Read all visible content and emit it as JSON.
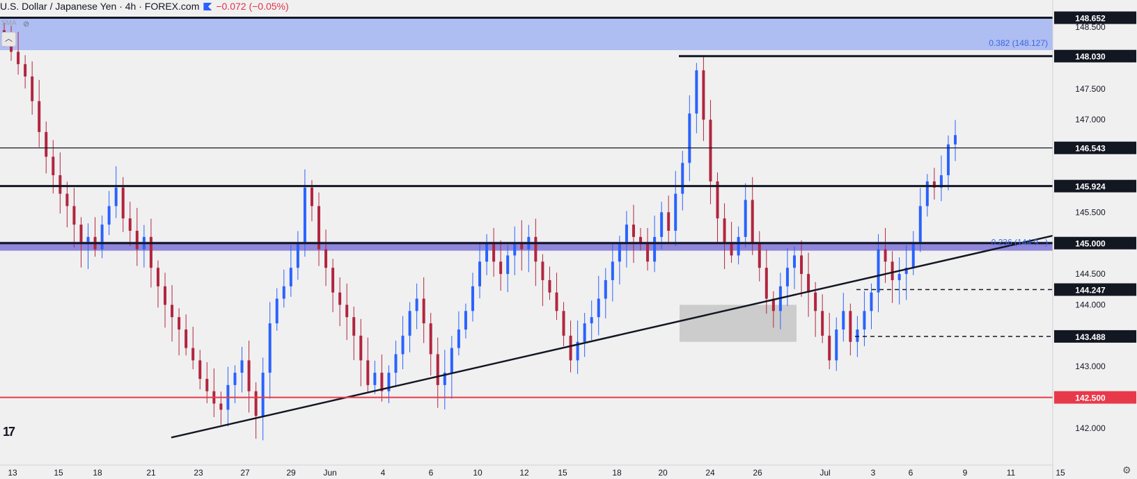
{
  "header": {
    "symbol_text": "U.S. Dollar / Japanese Yen · 4h · FOREX.com",
    "change_text": "−0.072 (−0.05%)",
    "indicator_label": "SMA"
  },
  "colors": {
    "background": "#f0f0f0",
    "up_candle": "#2962ff",
    "down_candle": "#b2253f",
    "fib_zone": "#a6b7f2",
    "zone_145": "#7f73d6",
    "support_red": "#e8394b",
    "level_black": "#131722",
    "box_grey": "#c8c8c8",
    "fib_text": "#3d68e0"
  },
  "icons": [
    "eye-off-icon",
    "chevron-up-icon",
    "tradingview-logo-icon",
    "gear-icon"
  ],
  "chart_data": {
    "type": "candlestick",
    "title": "U.S. Dollar / Japanese Yen · 4h · FOREX.com",
    "ylim": [
      141.8,
      148.9
    ],
    "yaxis_ticks": [
      "148.500",
      "147.500",
      "147.000",
      "145.500",
      "144.500",
      "144.000",
      "143.000",
      "142.000"
    ],
    "xaxis_ticks": [
      "13",
      "15",
      "18",
      "21",
      "23",
      "27",
      "29",
      "Jun",
      "4",
      "6",
      "10",
      "12",
      "15",
      "18",
      "20",
      "24",
      "26",
      "Jul",
      "3",
      "6",
      "9",
      "11",
      "15"
    ],
    "price_levels": [
      {
        "value": 148.652,
        "label": "148.652",
        "style": "thick",
        "color": "#131722"
      },
      {
        "value": 148.03,
        "label": "148.030",
        "style": "thick",
        "color": "#131722"
      },
      {
        "value": 146.543,
        "label": "146.543",
        "style": "thin",
        "color": "#131722"
      },
      {
        "value": 145.924,
        "label": "145.924",
        "style": "thick",
        "color": "#131722"
      },
      {
        "value": 145.0,
        "label": "145.000",
        "style": "thick",
        "color": "#131722"
      },
      {
        "value": 144.247,
        "label": "144.247",
        "style": "dashed",
        "color": "#131722"
      },
      {
        "value": 143.488,
        "label": "143.488",
        "style": "dashed",
        "color": "#131722"
      },
      {
        "value": 142.5,
        "label": "142.500",
        "style": "solid",
        "color": "#e8394b"
      }
    ],
    "fib_levels": [
      {
        "label": "0.382 (148.127)",
        "value": 148.127
      },
      {
        "label": "0.236 (144.9...)",
        "value": 144.9
      }
    ],
    "zones": [
      {
        "name": "fib-zone",
        "from": 148.127,
        "to": 148.652
      },
      {
        "name": "145-zone",
        "from": 144.9,
        "to": 145.0
      }
    ],
    "grey_box": {
      "from": 143.4,
      "to": 144.0
    },
    "trendline": {
      "from": 141.85,
      "to": 145.12
    },
    "closes": [
      148.3,
      148.1,
      147.9,
      147.7,
      147.3,
      146.8,
      146.4,
      146.1,
      145.8,
      145.6,
      145.3,
      145.0,
      145.1,
      144.9,
      145.3,
      145.6,
      145.9,
      145.4,
      145.2,
      144.9,
      145.1,
      144.6,
      144.3,
      144.0,
      143.8,
      143.6,
      143.3,
      143.1,
      142.8,
      142.6,
      142.4,
      142.3,
      142.7,
      142.9,
      143.1,
      142.6,
      142.2,
      142.9,
      143.7,
      144.1,
      144.3,
      144.6,
      145.0,
      145.9,
      145.6,
      144.9,
      144.6,
      144.2,
      144.0,
      143.8,
      143.5,
      143.1,
      142.7,
      142.9,
      142.6,
      142.9,
      143.2,
      143.5,
      143.9,
      144.1,
      143.7,
      143.2,
      142.7,
      142.9,
      143.3,
      143.6,
      143.9,
      144.3,
      144.7,
      145.0,
      144.7,
      144.5,
      144.8,
      145.0,
      144.9,
      145.1,
      144.7,
      144.4,
      144.2,
      143.9,
      143.5,
      143.1,
      143.4,
      143.7,
      143.8,
      144.1,
      144.4,
      144.7,
      145.0,
      145.3,
      145.1,
      145.0,
      144.7,
      145.1,
      145.5,
      145.2,
      145.8,
      146.3,
      147.1,
      147.8,
      147.0,
      146.0,
      145.4,
      145.0,
      144.8,
      145.1,
      145.7,
      145.0,
      144.6,
      144.1,
      143.9,
      144.3,
      144.6,
      144.8,
      144.5,
      144.2,
      143.9,
      143.5,
      143.1,
      143.6,
      143.9,
      143.4,
      143.6,
      143.9,
      144.2,
      144.9,
      144.7,
      144.4,
      144.5,
      144.6,
      145.0,
      145.6,
      146.0,
      145.9,
      146.1,
      146.6,
      146.75
    ]
  }
}
